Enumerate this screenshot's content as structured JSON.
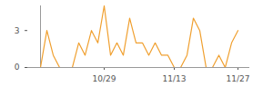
{
  "chart_data": {
    "type": "line",
    "categories": [
      null,
      null,
      null,
      null,
      null,
      null,
      null,
      null,
      null,
      null,
      "10/29",
      null,
      null,
      null,
      null,
      null,
      null,
      null,
      null,
      null,
      null,
      "11/13",
      null,
      null,
      null,
      null,
      null,
      null,
      null,
      null,
      null,
      "11/27"
    ],
    "values": [
      0,
      3,
      1,
      0,
      0,
      0,
      2,
      1,
      3,
      2,
      5,
      1,
      2,
      1,
      4,
      2,
      2,
      1,
      2,
      1,
      1,
      0,
      0,
      1,
      4,
      3,
      0,
      0,
      1,
      0,
      2,
      3
    ],
    "color": "#f0a030",
    "ylim": [
      0,
      5
    ],
    "yticks": [
      0,
      3
    ],
    "grid": false
  }
}
